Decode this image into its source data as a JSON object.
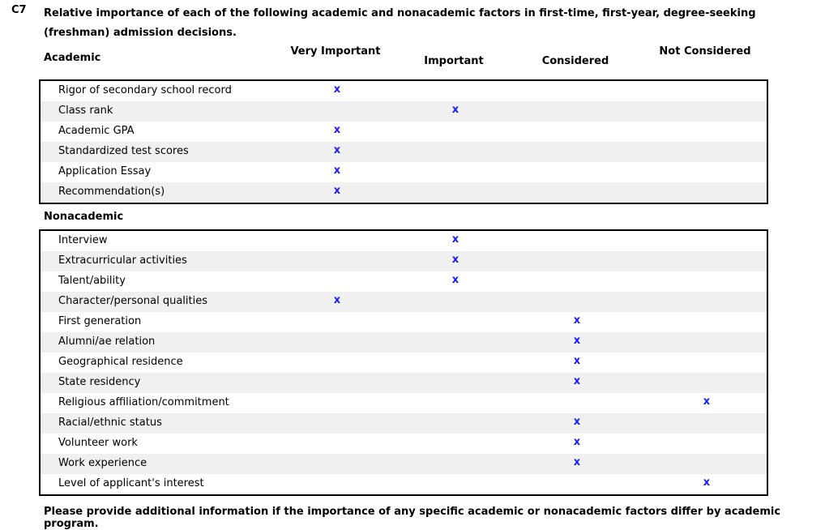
{
  "question_number": "C7",
  "question_text": "Relative importance of each of the following academic and nonacademic factors in first-time, first-year, degree-seeking (freshman) admission decisions.",
  "columns": [
    "Very Important",
    "Important",
    "Considered",
    "Not Considered"
  ],
  "mark_symbol": "x",
  "mark_color": "#1a1aff",
  "academic": {
    "heading": "Academic",
    "rows": [
      {
        "label": "Rigor of secondary school record",
        "rating": 0
      },
      {
        "label": "Class rank",
        "rating": 1
      },
      {
        "label": "Academic GPA",
        "rating": 0
      },
      {
        "label": "Standardized test scores",
        "rating": 0
      },
      {
        "label": "Application Essay",
        "rating": 0
      },
      {
        "label": "Recommendation(s)",
        "rating": 0
      }
    ]
  },
  "nonacademic": {
    "heading": "Nonacademic",
    "rows": [
      {
        "label": "Interview",
        "rating": 1
      },
      {
        "label": "Extracurricular activities",
        "rating": 1
      },
      {
        "label": "Talent/ability",
        "rating": 1
      },
      {
        "label": "Character/personal qualities",
        "rating": 0
      },
      {
        "label": "First generation",
        "rating": 2
      },
      {
        "label": "Alumni/ae relation",
        "rating": 2
      },
      {
        "label": "Geographical residence",
        "rating": 2
      },
      {
        "label": "State residency",
        "rating": 2
      },
      {
        "label": "Religious affiliation/commitment",
        "rating": 3
      },
      {
        "label": "Racial/ethnic status",
        "rating": 2
      },
      {
        "label": "Volunteer work",
        "rating": 2
      },
      {
        "label": "Work experience",
        "rating": 2
      },
      {
        "label": "Level of applicant's interest",
        "rating": 3
      }
    ]
  },
  "footer": "Please provide additional information if the importance of any specific academic or nonacademic factors differ by academic program."
}
